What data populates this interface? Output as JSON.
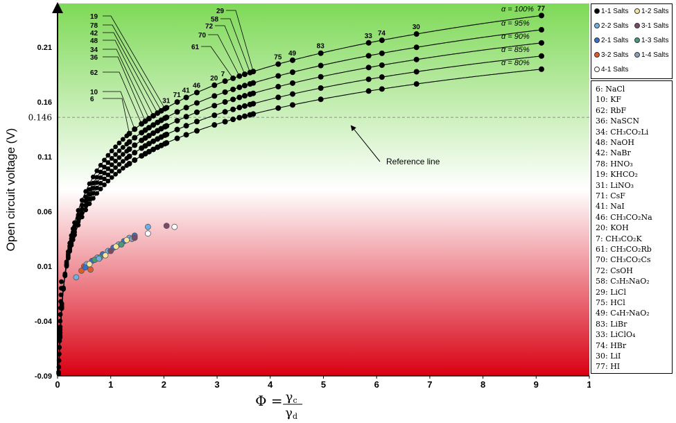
{
  "chart_data": {
    "type": "scatter",
    "xlabel": "Φ = γc / γd",
    "xlabel_parts": {
      "phi": "Φ",
      "eq": "=",
      "num": "γ",
      "num_sub": "c",
      "den": "γ",
      "den_sub": "d"
    },
    "ylabel": "Open circuit voltage (V)",
    "xlim": [
      0,
      10
    ],
    "ylim": [
      -0.09,
      0.25
    ],
    "x_ticks": [
      "0",
      "1",
      "2",
      "3",
      "4",
      "5",
      "6",
      "7",
      "8",
      "9",
      "1"
    ],
    "y_ticks": [
      {
        "value": 0.21,
        "label": "0.21"
      },
      {
        "value": 0.16,
        "label": "0.16"
      },
      {
        "value": 0.146,
        "label": "0.146"
      },
      {
        "value": 0.11,
        "label": "0.11"
      },
      {
        "value": 0.06,
        "label": "0.06"
      },
      {
        "value": 0.01,
        "label": "0.01"
      },
      {
        "value": -0.04,
        "label": "-0.04"
      },
      {
        "value": -0.09,
        "label": "-0.09"
      }
    ],
    "background": {
      "top": "#7ed957",
      "middle": "#ffffff",
      "bottom": "#d90012"
    },
    "reference_line": {
      "value": 0.146,
      "label": "Reference line",
      "color": "#a0a0a0"
    },
    "curves": [
      {
        "name": "α = 100%",
        "k": 0.0
      },
      {
        "name": "α = 95%",
        "k": 0.0
      },
      {
        "name": "α = 90%",
        "k": 0.0
      },
      {
        "name": "α = 85%",
        "k": 0.0
      },
      {
        "name": "α = 80%",
        "k": 0.0
      }
    ],
    "curve_values_at_phi_9_1": [
      0.239,
      0.226,
      0.214,
      0.202,
      0.19
    ],
    "salt_points_1_1": [
      {
        "id": "6",
        "x": 1.35
      },
      {
        "id": "10",
        "x": 1.45
      },
      {
        "id": "62",
        "x": 1.58
      },
      {
        "id": "36",
        "x": 1.65
      },
      {
        "id": "34",
        "x": 1.72
      },
      {
        "id": "48",
        "x": 1.8
      },
      {
        "id": "42",
        "x": 1.88
      },
      {
        "id": "78",
        "x": 1.95
      },
      {
        "id": "19",
        "x": 2.02
      },
      {
        "id": "31",
        "x": 2.05
      },
      {
        "id": "71",
        "x": 2.25
      },
      {
        "id": "41",
        "x": 2.42
      },
      {
        "id": "46",
        "x": 2.62
      },
      {
        "id": "20",
        "x": 2.95
      },
      {
        "id": "7",
        "x": 3.15
      },
      {
        "id": "61",
        "x": 3.3
      },
      {
        "id": "70",
        "x": 3.42
      },
      {
        "id": "72",
        "x": 3.52
      },
      {
        "id": "58",
        "x": 3.62
      },
      {
        "id": "29",
        "x": 3.68
      },
      {
        "id": "75",
        "x": 4.15
      },
      {
        "id": "49",
        "x": 4.42
      },
      {
        "id": "83",
        "x": 4.95
      },
      {
        "id": "33",
        "x": 5.85
      },
      {
        "id": "74",
        "x": 6.1
      },
      {
        "id": "30",
        "x": 6.75
      },
      {
        "id": "77",
        "x": 9.1
      }
    ],
    "legend": [
      {
        "label": "1-1 Salts",
        "color": "#000000"
      },
      {
        "label": "1-2 Salts",
        "color": "#f5e6a0"
      },
      {
        "label": "2-2 Salts",
        "color": "#6fb0e0"
      },
      {
        "label": "3-1 Salts",
        "color": "#7a4a6a"
      },
      {
        "label": "2-1 Salts",
        "color": "#3a6fc4"
      },
      {
        "label": "1-3 Salts",
        "color": "#4a9a7a"
      },
      {
        "label": "3-2 Salts",
        "color": "#e05a2a"
      },
      {
        "label": "1-4 Salts",
        "color": "#8aa0b8"
      },
      {
        "label": "4-1 Salts",
        "color": "#ffffff"
      }
    ],
    "salt_key": [
      "6: NaCl",
      "10: KF",
      "62: RbF",
      "36: NaSCN",
      "34: CH₃CO₂Li",
      "48: NaOH",
      "42: NaBr",
      "78: HNO₃",
      "19: KHCO₂",
      "31: LiNO₃",
      "71: CsF",
      "41: NaI",
      "46: CH₃CO₂Na",
      "20: KOH",
      "7: CH₃CO₂K",
      "61: CH₃CO₂Rb",
      "70: CH₃CO₂Cs",
      "72: CsOH",
      "58: C₃H₅NaO₂",
      "29: LiCl",
      "75: HCl",
      "49: C₄H₇NaO₂",
      "83: LiBr",
      "33: LiClO₄",
      "74: HBr",
      "30: LiI",
      "77: HI"
    ]
  }
}
